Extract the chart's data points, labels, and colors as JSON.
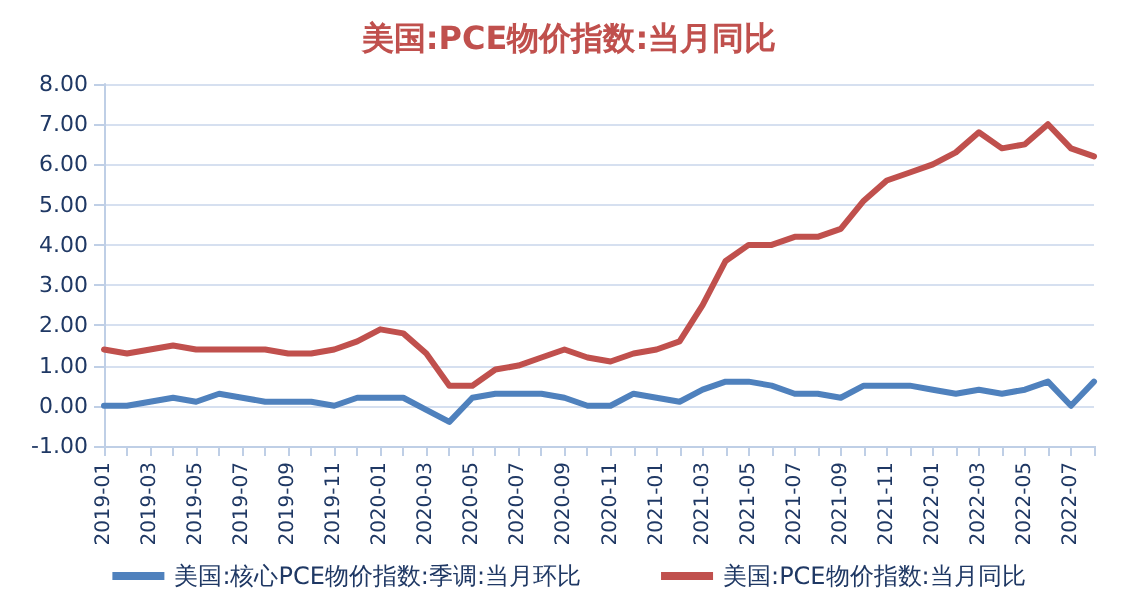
{
  "chart_data": {
    "type": "line",
    "title": "美国:PCE物价指数:当月同比",
    "categories": [
      "2019-01",
      null,
      "2019-03",
      null,
      "2019-05",
      null,
      "2019-07",
      null,
      "2019-09",
      null,
      "2019-11",
      null,
      "2020-01",
      null,
      "2020-03",
      null,
      "2020-05",
      null,
      "2020-07",
      null,
      "2020-09",
      null,
      "2020-11",
      null,
      "2021-01",
      null,
      "2021-03",
      null,
      "2021-05",
      null,
      "2021-07",
      null,
      "2021-09",
      null,
      "2021-11",
      null,
      "2022-01",
      null,
      "2022-03",
      null,
      "2022-05",
      null,
      "2022-07",
      null
    ],
    "series": [
      {
        "name": "美国:核心PCE物价指数:季调:当月环比",
        "color": "#4f81bd",
        "values": [
          0.0,
          0.0,
          0.1,
          0.2,
          0.1,
          0.3,
          0.2,
          0.1,
          0.1,
          0.1,
          0.0,
          0.2,
          0.2,
          0.2,
          -0.1,
          -0.4,
          0.2,
          0.3,
          0.3,
          0.3,
          0.2,
          0.0,
          0.0,
          0.3,
          0.2,
          0.1,
          0.4,
          0.6,
          0.6,
          0.5,
          0.3,
          0.3,
          0.2,
          0.5,
          0.5,
          0.5,
          0.4,
          0.3,
          0.4,
          0.3,
          0.4,
          0.6,
          0.0,
          0.6
        ]
      },
      {
        "name": "美国:PCE物价指数:当月同比",
        "color": "#c0504d",
        "values": [
          1.4,
          1.3,
          1.4,
          1.5,
          1.4,
          1.4,
          1.4,
          1.4,
          1.3,
          1.3,
          1.4,
          1.6,
          1.9,
          1.8,
          1.3,
          0.5,
          0.5,
          0.9,
          1.0,
          1.2,
          1.4,
          1.2,
          1.1,
          1.3,
          1.4,
          1.6,
          2.5,
          3.6,
          4.0,
          4.0,
          4.2,
          4.2,
          4.4,
          5.1,
          5.6,
          5.8,
          6.0,
          6.3,
          6.8,
          6.4,
          6.5,
          7.0,
          6.4,
          6.2
        ]
      }
    ],
    "ylim": [
      -1,
      8
    ],
    "yticks": [
      {
        "value": -1,
        "label": "-1.00"
      },
      {
        "value": 0,
        "label": "0.00"
      },
      {
        "value": 1,
        "label": "1.00"
      },
      {
        "value": 2,
        "label": "2.00"
      },
      {
        "value": 3,
        "label": "3.00"
      },
      {
        "value": 4,
        "label": "4.00"
      },
      {
        "value": 5,
        "label": "5.00"
      },
      {
        "value": 6,
        "label": "6.00"
      },
      {
        "value": 7,
        "label": "7.00"
      },
      {
        "value": 8,
        "label": "8.00"
      }
    ],
    "grid": "y",
    "legend": "bottom",
    "marker": "none",
    "line_style": "solid"
  }
}
